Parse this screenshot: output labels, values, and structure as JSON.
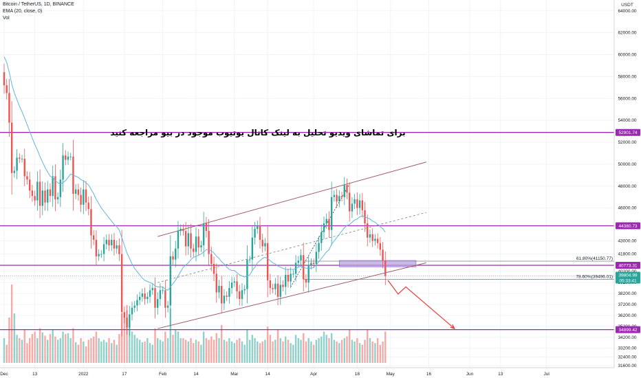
{
  "header": {
    "symbol_line": "Bitcoin / TetherUS, 1D, BINANCE",
    "ema_line": "EMA (20, close, 0)",
    "vol_line": "Vol"
  },
  "chart_data": {
    "type": "candlestick",
    "title": "Bitcoin / TetherUS, 1D, BINANCE",
    "currency": "USDT",
    "ylim": [
      30800,
      64300
    ],
    "price_ticks": [
      31600,
      32400,
      33200,
      34200,
      35200,
      36200,
      37200,
      38200,
      39200,
      40200,
      41800,
      43000,
      44400,
      46000,
      48000,
      50000,
      52000,
      54000,
      56000,
      58000,
      60000,
      62000,
      64000
    ],
    "x_ticks": [
      {
        "label": "Dec",
        "day": 0
      },
      {
        "label": "13",
        "day": 12
      },
      {
        "label": "2022",
        "day": 31
      },
      {
        "label": "17",
        "day": 47
      },
      {
        "label": "Feb",
        "day": 62
      },
      {
        "label": "14",
        "day": 75
      },
      {
        "label": "Mar",
        "day": 90
      },
      {
        "label": "14",
        "day": 103
      },
      {
        "label": "Apr",
        "day": 121
      },
      {
        "label": "18",
        "day": 138
      },
      {
        "label": "May",
        "day": 151
      },
      {
        "label": "16",
        "day": 166
      },
      {
        "label": "Jun",
        "day": 182
      },
      {
        "label": "13",
        "day": 194
      },
      {
        "label": "Jul",
        "day": 212
      }
    ],
    "closes": [
      57200,
      56500,
      53800,
      49200,
      49400,
      50600,
      50500,
      50500,
      48900,
      48600,
      47600,
      47100,
      46700,
      48400,
      46200,
      47600,
      46500,
      47700,
      47100,
      48900,
      46800,
      47000,
      48600,
      50800,
      50400,
      50700,
      50700,
      47300,
      47700,
      47200,
      46300,
      47700,
      46500,
      45900,
      43500,
      43100,
      41600,
      41800,
      41800,
      42700,
      43100,
      42600,
      43100,
      42300,
      42600,
      41800,
      36500,
      36000,
      35100,
      36300,
      36900,
      37100,
      37600,
      37900,
      38200,
      37700,
      37900,
      38500,
      38700,
      36900,
      37700,
      38500,
      38500,
      36900,
      37100,
      41600,
      41300,
      42300,
      43900,
      44100,
      43900,
      42500,
      43700,
      42300,
      42000,
      43400,
      42400,
      42600,
      44600,
      43900,
      41800,
      40900,
      40000,
      38300,
      38900,
      37300,
      38000,
      37900,
      38700,
      39200,
      39300,
      38400,
      37700,
      38500,
      38600,
      41300,
      41300,
      43300,
      44100,
      44400,
      43100,
      42500,
      42800,
      39400,
      38700,
      38600,
      39100,
      37900,
      39000,
      38800,
      39900,
      39300,
      40000,
      40000,
      41000,
      41200,
      41700,
      39500,
      39200,
      40800,
      41000,
      40900,
      42000,
      42800,
      43800,
      44600,
      45000,
      44000,
      47000,
      47200,
      46600,
      47100,
      47000,
      48100,
      47400,
      45700,
      46400,
      46800,
      46000,
      46700,
      45800,
      44600,
      43300,
      43600,
      43000,
      43200,
      42800,
      42200,
      41200,
      39800
    ],
    "ema20": [
      59800,
      59300,
      58400,
      57300,
      56500,
      55900,
      55300,
      54800,
      54200,
      53600,
      53000,
      52400,
      51800,
      51300,
      50700,
      50200,
      49700,
      49300,
      48900,
      48800,
      48500,
      48300,
      48200,
      48300,
      48500,
      48800,
      49100,
      49000,
      48900,
      48800,
      48600,
      48500,
      48300,
      48100,
      47700,
      47300,
      46800,
      46400,
      46000,
      45700,
      45400,
      45100,
      44800,
      44500,
      44300,
      44000,
      43300,
      42600,
      41900,
      41400,
      40900,
      40500,
      40200,
      39900,
      39600,
      39400,
      39300,
      39200,
      39100,
      38900,
      38800,
      38800,
      38800,
      38600,
      38500,
      38800,
      39100,
      39400,
      39800,
      40200,
      40600,
      40800,
      41000,
      41300,
      41500,
      41600,
      41700,
      41800,
      42000,
      42200,
      42200,
      42100,
      41900,
      41600,
      41400,
      41100,
      40900,
      40600,
      40400,
      40300,
      40300,
      40100,
      39900,
      39800,
      39700,
      39800,
      39900,
      40300,
      40600,
      41000,
      41200,
      41400,
      41500,
      41400,
      41200,
      41000,
      40900,
      40700,
      40600,
      40500,
      40400,
      40400,
      40400,
      40400,
      40500,
      40600,
      40700,
      40600,
      40500,
      40500,
      40500,
      40600,
      40800,
      41100,
      41400,
      41700,
      42000,
      42200,
      42700,
      43000,
      43300,
      43600,
      43900,
      44200,
      44400,
      44500,
      44700,
      44900,
      45000,
      45200,
      45300,
      45200,
      45100,
      45000,
      44800,
      44700,
      44500,
      44300,
      44100,
      43800
    ],
    "volumes": [
      30,
      22,
      55,
      95,
      60,
      34,
      30,
      28,
      40,
      24,
      30,
      35,
      38,
      30,
      42,
      37,
      33,
      28,
      35,
      40,
      32,
      28,
      30,
      38,
      35,
      36,
      30,
      42,
      25,
      22,
      30,
      26,
      20,
      28,
      30,
      32,
      38,
      30,
      26,
      28,
      25,
      30,
      24,
      28,
      22,
      35,
      60,
      55,
      70,
      45,
      38,
      34,
      30,
      28,
      25,
      26,
      30,
      24,
      22,
      42,
      30,
      28,
      26,
      38,
      30,
      66,
      34,
      40,
      38,
      30,
      30,
      28,
      26,
      30,
      24,
      28,
      26,
      22,
      38,
      30,
      28,
      32,
      28,
      36,
      30,
      46,
      28,
      26,
      30,
      26,
      24,
      28,
      30,
      26,
      22,
      40,
      28,
      34,
      30,
      26,
      24,
      26,
      28,
      44,
      34,
      26,
      28,
      40,
      30,
      26,
      32,
      28,
      24,
      22,
      34,
      30,
      28,
      36,
      26,
      30,
      26,
      22,
      28,
      30,
      32,
      38,
      34,
      30,
      36,
      28,
      26,
      24,
      28,
      30,
      32,
      40,
      28,
      26,
      30,
      24,
      22,
      28,
      40,
      30,
      26,
      24,
      30,
      22,
      26,
      38
    ],
    "horizontal_levels": [
      {
        "label": "52901.74",
        "price": 52901.74,
        "color": "#9c27b0"
      },
      {
        "label": "44380.73",
        "price": 44380.73,
        "color": "#9c27b0"
      },
      {
        "label": "40773.31",
        "price": 40773.31,
        "color": "#9c27b0"
      },
      {
        "label": "34899.42",
        "price": 34899.42,
        "color": "#9c27b0"
      }
    ],
    "fib_levels": [
      {
        "label": "61.80%(41150.77)",
        "price": 41150.77
      },
      {
        "label": "78.60%(39496.01)",
        "price": 39496.01
      }
    ],
    "last_price": {
      "label": "39804.99",
      "sub": "05:33:41",
      "color": "#26a69a"
    },
    "annotation": "برای تماشای ویدیو تحلیل به لینک کانال یوتیوب موجود در بیو مراجعه کنید",
    "colors": {
      "up": "#26a69a",
      "down": "#ef5350",
      "up_vol": "#8fd0c8",
      "down_vol": "#f7a9a7",
      "ema": "#5fb4e0",
      "level": "#9c27b0",
      "channel": "#9e5a6a",
      "projection": "#e53935"
    }
  }
}
